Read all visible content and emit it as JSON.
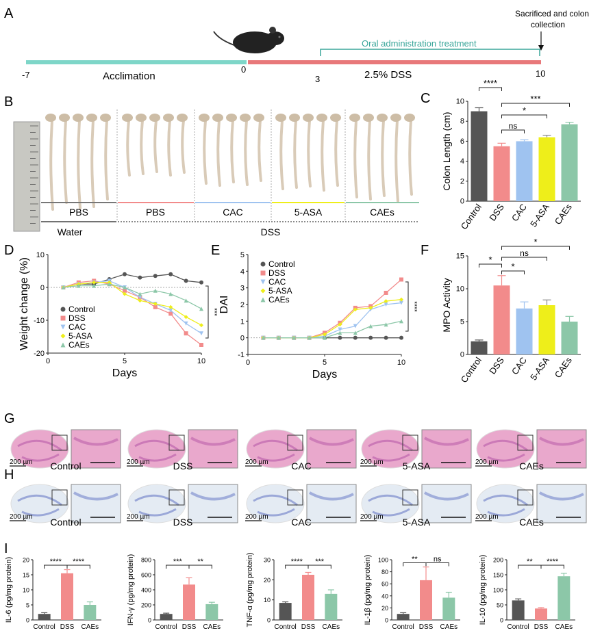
{
  "colors": {
    "control": "#555555",
    "dss": "#f28b8b",
    "cac": "#9fc3f0",
    "asa": "#eeee1a",
    "caes": "#8cc7a8",
    "accl": "#7ed6c8",
    "dssbar": "#e8787a",
    "oral": "#3aa69a"
  },
  "panels": {
    "A": "A",
    "B": "B",
    "C": "C",
    "D": "D",
    "E": "E",
    "F": "F",
    "G": "G",
    "H": "H",
    "I": "I"
  },
  "timeline": {
    "start": "-7",
    "zero": "0",
    "three": "3",
    "ten": "10",
    "accl": "Acclimation",
    "dss": "2.5% DSS",
    "oral": "Oral administration treatment",
    "sac1": "Sacrificed and colon",
    "sac2": "collection"
  },
  "colons": {
    "groups": [
      "PBS",
      "PBS",
      "CAC",
      "5-ASA",
      "CAEs"
    ],
    "water": "Water",
    "dss": "DSS"
  },
  "categories5": [
    "Control",
    "DSS",
    "CAC",
    "5-ASA",
    "CAEs"
  ],
  "categories3": [
    "Control",
    "DSS",
    "CAEs"
  ],
  "scalebar": "200 µm",
  "chart_data": [
    {
      "panel": "C",
      "type": "bar",
      "ylabel": "Colon Length (cm)",
      "ylim": [
        0,
        10
      ],
      "yticks": [
        "0",
        "2",
        "4",
        "6",
        "8",
        "10"
      ],
      "categories": [
        "Control",
        "DSS",
        "CAC",
        "5-ASA",
        "CAEs"
      ],
      "values": [
        9.0,
        5.5,
        6.0,
        6.4,
        7.7
      ],
      "errors": [
        0.35,
        0.3,
        0.15,
        0.2,
        0.2
      ],
      "sig": [
        "****",
        "ns",
        "*",
        "***"
      ]
    },
    {
      "panel": "D",
      "type": "line",
      "xlabel": "Days",
      "ylabel": "Weight change (%)",
      "xlim": [
        0,
        10
      ],
      "ylim": [
        -20,
        10
      ],
      "xticks": [
        "0",
        "5",
        "10"
      ],
      "yticks": [
        "-20",
        "-10",
        "0",
        "10"
      ],
      "x": [
        1,
        2,
        3,
        4,
        5,
        6,
        7,
        8,
        9,
        10
      ],
      "sig": "***",
      "series": [
        {
          "name": "Control",
          "values": [
            0,
            1,
            1,
            2.5,
            4,
            3,
            3.5,
            4,
            2,
            1.5
          ]
        },
        {
          "name": "DSS",
          "values": [
            0,
            1.5,
            2,
            1,
            -1,
            -3,
            -6,
            -8,
            -14,
            -17.5
          ]
        },
        {
          "name": "CAC",
          "values": [
            0,
            1,
            1.5,
            2,
            0,
            -3,
            -5,
            -7,
            -11,
            -14
          ]
        },
        {
          "name": "5-ASA",
          "values": [
            0,
            1,
            1.5,
            1.5,
            -2,
            -4,
            -5,
            -6,
            -9,
            -11.5
          ]
        },
        {
          "name": "CAEs",
          "values": [
            0,
            0.5,
            0.5,
            1,
            0,
            -2,
            -1,
            -2,
            -4,
            -6.5
          ]
        }
      ]
    },
    {
      "panel": "E",
      "type": "line",
      "xlabel": "Days",
      "ylabel": "DAI",
      "xlim": [
        0,
        10
      ],
      "ylim": [
        -1,
        5
      ],
      "xticks": [
        "0",
        "5",
        "10"
      ],
      "yticks": [
        "-1",
        "0",
        "1",
        "2",
        "3",
        "4",
        "5"
      ],
      "x": [
        1,
        2,
        3,
        4,
        5,
        6,
        7,
        8,
        9,
        10
      ],
      "sig": "****",
      "series": [
        {
          "name": "Control",
          "values": [
            0,
            0,
            0,
            0,
            0,
            0,
            0,
            0,
            0,
            0
          ]
        },
        {
          "name": "DSS",
          "values": [
            0,
            0,
            0,
            0,
            0.3,
            0.9,
            1.8,
            1.9,
            2.7,
            3.5
          ]
        },
        {
          "name": "CAC",
          "values": [
            0,
            0,
            0,
            0,
            0.1,
            0.5,
            0.7,
            1.7,
            2.0,
            2.1
          ]
        },
        {
          "name": "5-ASA",
          "values": [
            0,
            0,
            0,
            0,
            0.2,
            0.8,
            1.7,
            1.8,
            2.2,
            2.3
          ]
        },
        {
          "name": "CAEs",
          "values": [
            0,
            0,
            0,
            0,
            0,
            0.3,
            0.3,
            0.7,
            0.8,
            1.0
          ]
        }
      ]
    },
    {
      "panel": "F",
      "type": "bar",
      "ylabel": "MPO Activity",
      "ylim": [
        0,
        15
      ],
      "yticks": [
        "0",
        "5",
        "10",
        "15"
      ],
      "categories": [
        "Control",
        "DSS",
        "CAC",
        "5-ASA",
        "CAEs"
      ],
      "values": [
        2.0,
        10.5,
        7.0,
        7.5,
        5.0
      ],
      "errors": [
        0.2,
        1.5,
        1.0,
        0.8,
        0.8
      ],
      "sig": [
        "*",
        "*",
        "ns",
        "*"
      ]
    },
    {
      "panel": "I1",
      "type": "bar",
      "ylabel": "IL-6 (pg/mg protein)",
      "ylim": [
        0,
        20
      ],
      "yticks": [
        "0",
        "5",
        "10",
        "15",
        "20"
      ],
      "categories": [
        "Control",
        "DSS",
        "CAEs"
      ],
      "values": [
        2.0,
        15.5,
        5.0
      ],
      "errors": [
        0.4,
        1.2,
        1.0
      ],
      "sig": [
        "****",
        "****"
      ]
    },
    {
      "panel": "I2",
      "type": "bar",
      "ylabel": "IFN-γ (pg/mg protein)",
      "ylim": [
        0,
        800
      ],
      "yticks": [
        "0",
        "200",
        "400",
        "600",
        "800"
      ],
      "categories": [
        "Control",
        "DSS",
        "CAEs"
      ],
      "values": [
        80,
        470,
        210
      ],
      "errors": [
        10,
        90,
        25
      ],
      "sig": [
        "***",
        "**"
      ]
    },
    {
      "panel": "I3",
      "type": "bar",
      "ylabel": "TNF-α (pg/mg protein)",
      "ylim": [
        0,
        30
      ],
      "yticks": [
        "0",
        "10",
        "20",
        "30"
      ],
      "categories": [
        "Control",
        "DSS",
        "CAEs"
      ],
      "values": [
        8.5,
        22.5,
        13.0
      ],
      "errors": [
        0.5,
        1.2,
        2.0
      ],
      "sig": [
        "****",
        "***"
      ]
    },
    {
      "panel": "I4",
      "type": "bar",
      "ylabel": "IL-1β (pg/mg protein)",
      "ylim": [
        0,
        100
      ],
      "yticks": [
        "0",
        "20",
        "40",
        "60",
        "80",
        "100"
      ],
      "categories": [
        "Control",
        "DSS",
        "CAEs"
      ],
      "values": [
        10,
        66,
        37
      ],
      "errors": [
        2,
        22,
        9
      ],
      "sig": [
        "**",
        "ns"
      ]
    },
    {
      "panel": "I5",
      "type": "bar",
      "ylabel": "IL-10 (pg/mg protein)",
      "ylim": [
        0,
        200
      ],
      "yticks": [
        "0",
        "50",
        "100",
        "150",
        "200"
      ],
      "categories": [
        "Control",
        "DSS",
        "CAEs"
      ],
      "values": [
        65,
        38,
        145
      ],
      "errors": [
        5,
        3,
        10
      ],
      "sig": [
        "**",
        "****"
      ]
    }
  ]
}
